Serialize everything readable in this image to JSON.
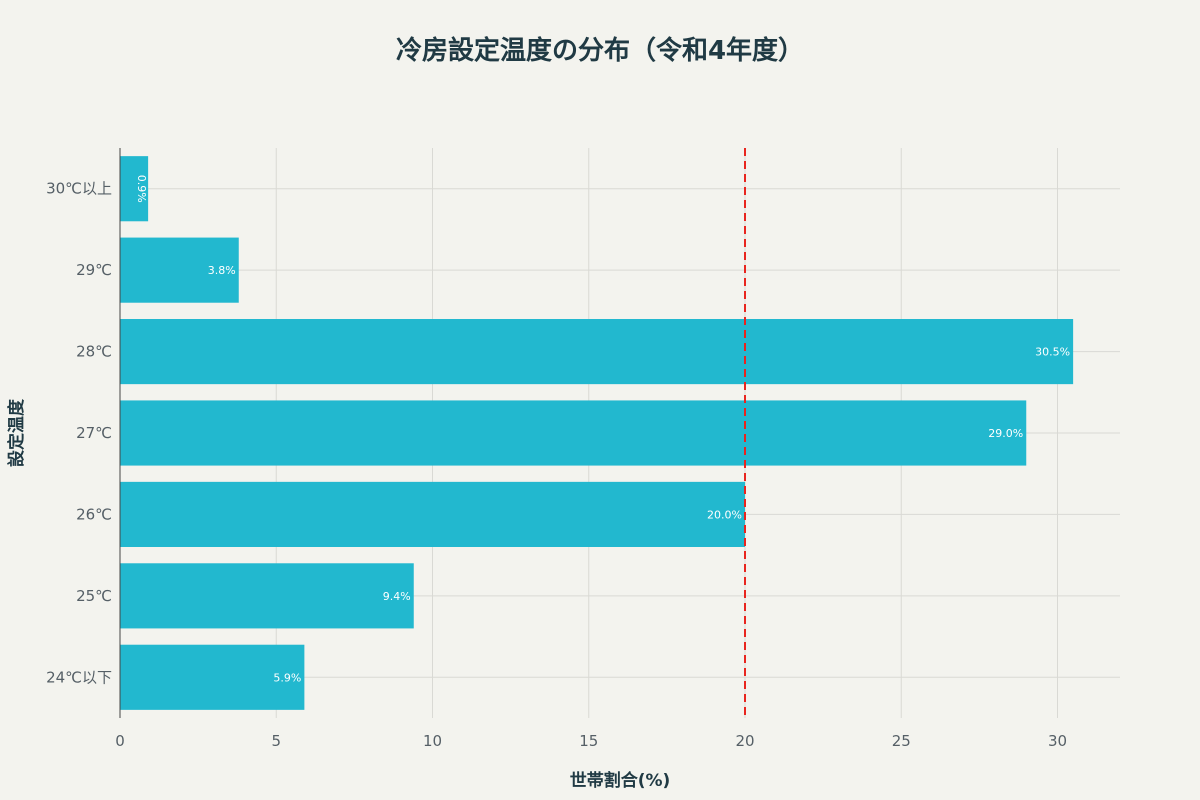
{
  "chart_data": {
    "type": "bar",
    "orientation": "horizontal",
    "title": "冷房設定温度の分布（令和4年度）",
    "xlabel": "世帯割合(%)",
    "ylabel": "設定温度",
    "categories": [
      "30℃以上",
      "29℃",
      "28℃",
      "27℃",
      "26℃",
      "25℃",
      "24℃以下"
    ],
    "values": [
      0.9,
      3.8,
      30.5,
      29.0,
      20.0,
      9.4,
      5.9
    ],
    "data_labels": [
      "0.9%",
      "3.8%",
      "30.5%",
      "29.0%",
      "20.0%",
      "9.4%",
      "5.9%"
    ],
    "xlim": [
      0,
      32
    ],
    "xticks": [
      0,
      5,
      10,
      15,
      20,
      25,
      30
    ],
    "reference_line": {
      "x": 20,
      "color": "#e8251e",
      "style": "dashed"
    },
    "bar_color": "#22b8cf",
    "grid": true
  }
}
